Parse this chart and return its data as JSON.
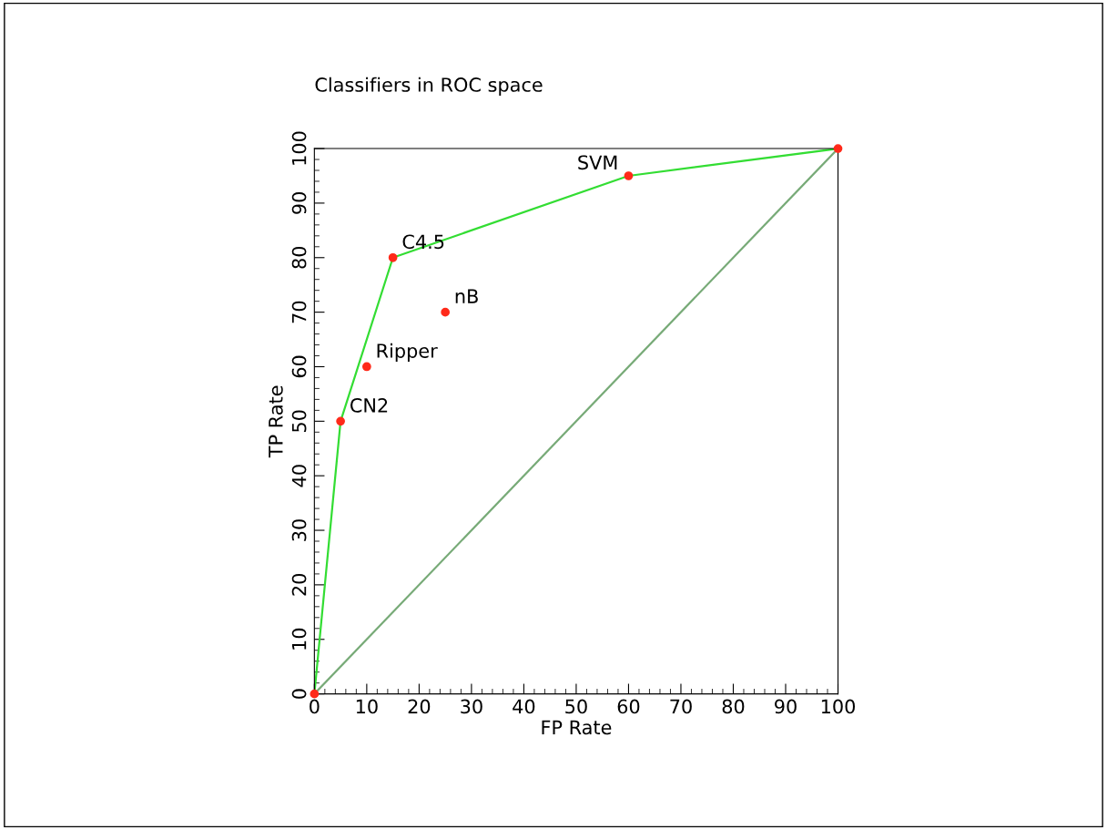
{
  "chart_data": {
    "type": "line",
    "title": "Classifiers in ROC space",
    "xlabel": "FP Rate",
    "ylabel": "TP Rate",
    "series": [
      {
        "color": "#33dd33",
        "x": [
          0,
          5,
          15,
          60,
          100
        ],
        "values": [
          0,
          50,
          80,
          95,
          100
        ]
      },
      {
        "color": "#77aa77",
        "x": [
          0,
          100
        ],
        "values": [
          0,
          100
        ]
      },
      {
        "type": "scatter",
        "marker": "circle",
        "color": "#ff2a1a",
        "x": [
          0,
          5,
          10,
          15,
          25,
          60,
          100
        ],
        "values": [
          0,
          50,
          60,
          80,
          70,
          95,
          100
        ]
      }
    ],
    "annotations": [
      {
        "text": "CN2",
        "x": 5,
        "y": 50
      },
      {
        "text": "Ripper",
        "x": 10,
        "y": 60
      },
      {
        "text": "C4.5",
        "x": 15,
        "y": 80
      },
      {
        "text": "nB",
        "x": 25,
        "y": 70
      },
      {
        "text": "SVM",
        "x": 60,
        "y": 95
      }
    ],
    "xlim": [
      0,
      100
    ],
    "ylim": [
      0,
      100
    ],
    "xticks": [
      0,
      10,
      20,
      30,
      40,
      50,
      60,
      70,
      80,
      90,
      100
    ],
    "yticks": [
      0,
      10,
      20,
      30,
      40,
      50,
      60,
      70,
      80,
      90,
      100
    ],
    "grid": false,
    "legend": false,
    "line_style": "solid"
  }
}
